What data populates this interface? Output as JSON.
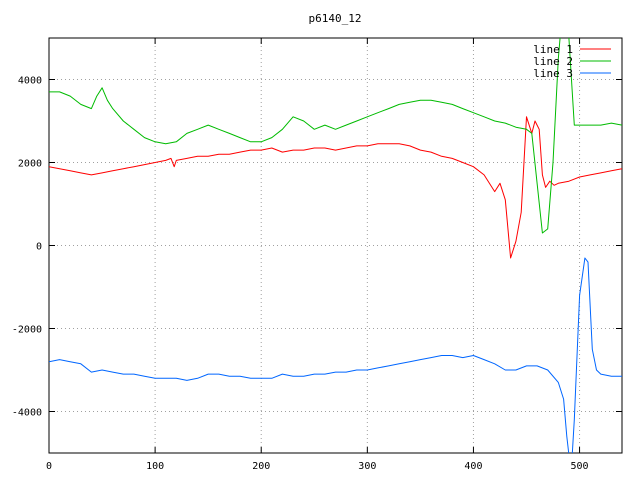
{
  "chart_data": {
    "type": "line",
    "title": "p6140_12",
    "xlabel": "",
    "ylabel": "",
    "xlim": [
      0,
      540
    ],
    "ylim": [
      -5000,
      5000
    ],
    "xticks": [
      0,
      100,
      200,
      300,
      400,
      500
    ],
    "yticks": [
      -4000,
      -2000,
      0,
      2000,
      4000
    ],
    "grid": true,
    "legend_position": "top-right",
    "series": [
      {
        "name": "line 1",
        "color": "#ff0000",
        "x": [
          0,
          10,
          20,
          30,
          40,
          50,
          60,
          70,
          80,
          90,
          100,
          110,
          115,
          118,
          120,
          130,
          140,
          150,
          160,
          170,
          180,
          190,
          200,
          210,
          220,
          230,
          240,
          250,
          260,
          270,
          280,
          290,
          300,
          310,
          320,
          330,
          340,
          350,
          360,
          370,
          380,
          390,
          400,
          410,
          420,
          425,
          430,
          435,
          440,
          445,
          450,
          455,
          458,
          462,
          465,
          468,
          472,
          476,
          480,
          490,
          500,
          510,
          520,
          530,
          540
        ],
        "y": [
          1900,
          1850,
          1800,
          1750,
          1700,
          1750,
          1800,
          1850,
          1900,
          1950,
          2000,
          2050,
          2100,
          1900,
          2050,
          2100,
          2150,
          2150,
          2200,
          2200,
          2250,
          2300,
          2300,
          2350,
          2250,
          2300,
          2300,
          2350,
          2350,
          2300,
          2350,
          2400,
          2400,
          2450,
          2450,
          2450,
          2400,
          2300,
          2250,
          2150,
          2100,
          2000,
          1900,
          1700,
          1300,
          1500,
          1100,
          -300,
          100,
          800,
          3100,
          2700,
          3000,
          2800,
          1700,
          1400,
          1550,
          1450,
          1500,
          1550,
          1650,
          1700,
          1750,
          1800,
          1850
        ]
      },
      {
        "name": "line 2",
        "color": "#00bb00",
        "x": [
          0,
          10,
          20,
          30,
          40,
          45,
          50,
          55,
          60,
          70,
          80,
          90,
          100,
          110,
          120,
          130,
          140,
          150,
          160,
          170,
          180,
          190,
          200,
          210,
          220,
          230,
          240,
          250,
          260,
          270,
          280,
          290,
          300,
          310,
          320,
          330,
          340,
          350,
          360,
          370,
          380,
          390,
          400,
          410,
          420,
          430,
          440,
          450,
          455,
          460,
          465,
          470,
          475,
          480,
          485,
          490,
          495,
          500,
          510,
          520,
          530,
          540
        ],
        "y": [
          3700,
          3700,
          3600,
          3400,
          3300,
          3600,
          3800,
          3500,
          3300,
          3000,
          2800,
          2600,
          2500,
          2450,
          2500,
          2700,
          2800,
          2900,
          2800,
          2700,
          2600,
          2500,
          2500,
          2600,
          2800,
          3100,
          3000,
          2800,
          2900,
          2800,
          2900,
          3000,
          3100,
          3200,
          3300,
          3400,
          3450,
          3500,
          3500,
          3450,
          3400,
          3300,
          3200,
          3100,
          3000,
          2950,
          2850,
          2800,
          2700,
          1500,
          300,
          400,
          2000,
          4500,
          6000,
          5000,
          2900,
          2900,
          2900,
          2900,
          2950,
          2900
        ]
      },
      {
        "name": "line 3",
        "color": "#0066ff",
        "x": [
          0,
          10,
          20,
          30,
          40,
          50,
          60,
          70,
          80,
          90,
          100,
          110,
          120,
          130,
          140,
          150,
          160,
          170,
          180,
          190,
          200,
          210,
          220,
          230,
          240,
          250,
          260,
          270,
          280,
          290,
          300,
          310,
          320,
          330,
          340,
          350,
          360,
          370,
          380,
          390,
          400,
          410,
          420,
          430,
          440,
          450,
          460,
          470,
          480,
          485,
          488,
          492,
          495,
          500,
          505,
          508,
          512,
          516,
          520,
          530,
          540
        ],
        "y": [
          -2800,
          -2750,
          -2800,
          -2850,
          -3050,
          -3000,
          -3050,
          -3100,
          -3100,
          -3150,
          -3200,
          -3200,
          -3200,
          -3250,
          -3200,
          -3100,
          -3100,
          -3150,
          -3150,
          -3200,
          -3200,
          -3200,
          -3100,
          -3150,
          -3150,
          -3100,
          -3100,
          -3050,
          -3050,
          -3000,
          -3000,
          -2950,
          -2900,
          -2850,
          -2800,
          -2750,
          -2700,
          -2650,
          -2650,
          -2700,
          -2650,
          -2750,
          -2850,
          -3000,
          -3000,
          -2900,
          -2900,
          -3000,
          -3300,
          -3700,
          -4600,
          -5500,
          -4200,
          -1200,
          -300,
          -400,
          -2500,
          -3000,
          -3100,
          -3150,
          -3150
        ]
      }
    ]
  }
}
